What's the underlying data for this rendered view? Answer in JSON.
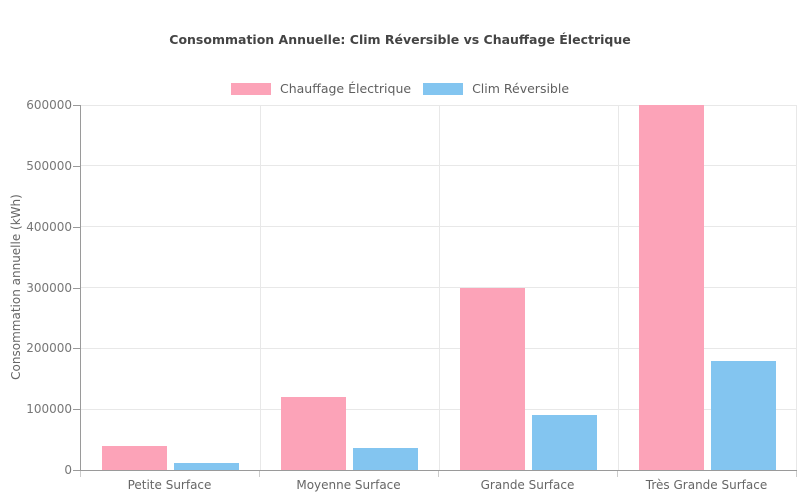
{
  "chart_data": {
    "type": "bar",
    "title": "Consommation Annuelle: Clim Réversible vs Chauffage Électrique",
    "xlabel": "",
    "ylabel": "Consommation annuelle (kWh)",
    "categories": [
      "Petite Surface",
      "Moyenne Surface",
      "Grande Surface",
      "Très Grande Surface"
    ],
    "series": [
      {
        "name": "Chauffage Électrique",
        "color": "#fca3b8",
        "values": [
          40000,
          120000,
          300000,
          600000
        ]
      },
      {
        "name": "Clim Réversible",
        "color": "#83c5f0",
        "values": [
          12000,
          36000,
          90000,
          180000
        ]
      }
    ],
    "ylim": [
      0,
      600000
    ],
    "yticks": [
      0,
      100000,
      200000,
      300000,
      400000,
      500000,
      600000
    ],
    "grid": true,
    "legend_position": "top-center",
    "colors": {
      "grid": "#e8e8e8",
      "axis": "#9a9a9a",
      "x_tick": "#cccccc",
      "title_text": "#444444",
      "axis_label_text": "#666666",
      "tick_label_text": "#777777",
      "background": "#ffffff"
    }
  }
}
